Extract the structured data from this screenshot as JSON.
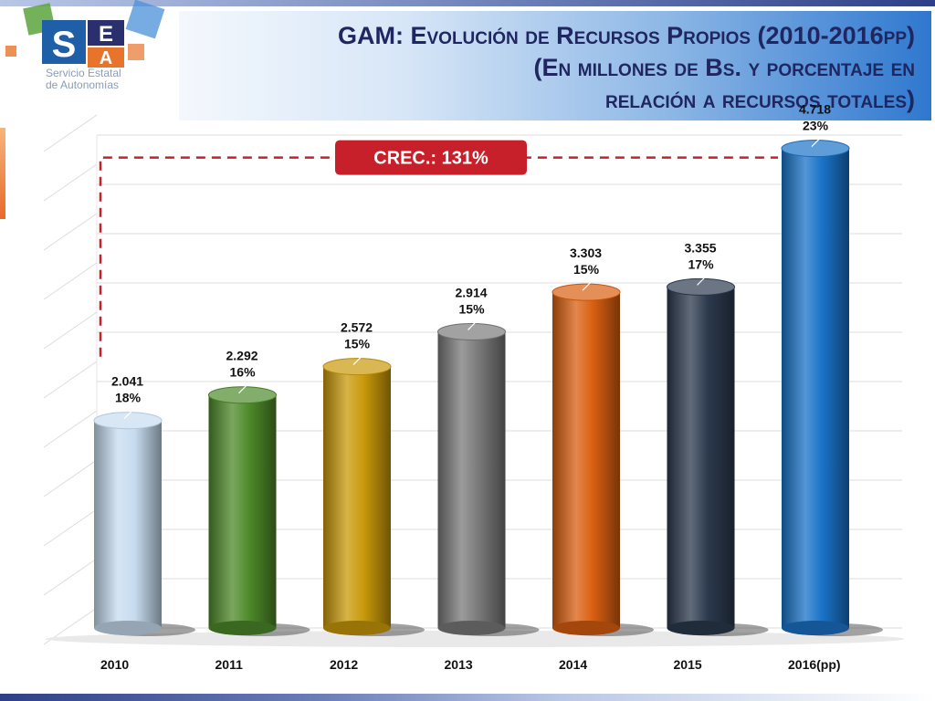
{
  "logo": {
    "letters": [
      "S",
      "E",
      "A"
    ],
    "caption": "Servicio Estatal\nde Autonomías",
    "colors": {
      "S": "#1f5fa8",
      "E": "#2a2f6e",
      "A": "#e8742c",
      "accent_green": "#5aa43c",
      "accent_blue": "#4a90d9"
    }
  },
  "title": {
    "line1": "GAM: Evolución de Recursos Propios (2010-2016pp)",
    "line2": "(En millones de Bs. y porcentaje en",
    "line3": "relación a recursos totales)"
  },
  "chart_data": {
    "type": "bar",
    "categories": [
      "2010",
      "2011",
      "2012",
      "2013",
      "2014",
      "2015",
      "2016(pp)"
    ],
    "values": [
      2041,
      2292,
      2572,
      2914,
      3303,
      3355,
      4718
    ],
    "value_labels": [
      "2.041",
      "2.292",
      "2.572",
      "2.914",
      "3.303",
      "3.355",
      "4.718"
    ],
    "percent_labels": [
      "18%",
      "16%",
      "15%",
      "15%",
      "15%",
      "17%",
      "23%"
    ],
    "colors": [
      "#c7dcf0",
      "#4e8a2a",
      "#c9990a",
      "#7a7a7a",
      "#d95f10",
      "#2c3a4e",
      "#1a73c8"
    ],
    "ylim": [
      0,
      5000
    ],
    "grid": true,
    "annotation": {
      "label": "CREC.: 131%",
      "from": "2010",
      "to": "2016(pp)",
      "color": "#c8202a"
    }
  }
}
